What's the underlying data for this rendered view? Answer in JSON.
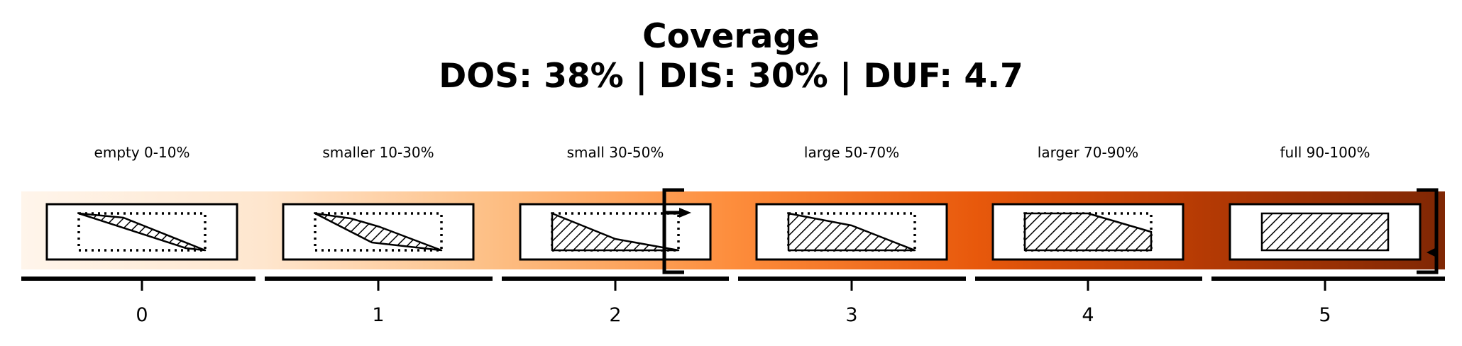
{
  "title": "Coverage",
  "subtitle": "DOS: 38% | DIS: 30% | DUF: 4.7",
  "categories": [
    {
      "index": "0",
      "label": "empty 0-10%"
    },
    {
      "index": "1",
      "label": "smaller 10-30%"
    },
    {
      "index": "2",
      "label": "small 30-50%"
    },
    {
      "index": "3",
      "label": "large 50-70%"
    },
    {
      "index": "4",
      "label": "larger 70-90%"
    },
    {
      "index": "5",
      "label": "full 90-100%"
    }
  ],
  "gradient_colors": {
    "start": "#fff5eb",
    "mid": "#fd8d3c",
    "end": "#7f2704"
  },
  "markers": {
    "dos_percent": 38,
    "dis_percent": 30,
    "duf": 4.7
  }
}
